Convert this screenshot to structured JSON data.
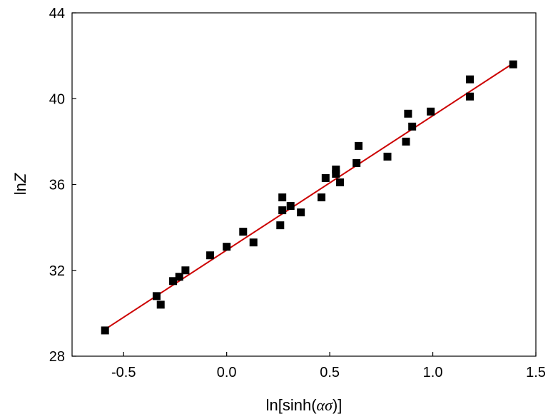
{
  "chart_data": {
    "type": "scatter",
    "title": "",
    "xlabel_parts": [
      "ln[sinh(",
      "ασ",
      ")]"
    ],
    "ylabel_parts": [
      "ln",
      "Z"
    ],
    "xlim": [
      -0.75,
      1.5
    ],
    "ylim": [
      28,
      44
    ],
    "xticks": [
      -0.5,
      0.0,
      0.5,
      1.0,
      1.5
    ],
    "xtick_labels": [
      "-0.5",
      "0.0",
      "0.5",
      "1.0",
      "1.5"
    ],
    "yticks": [
      28,
      32,
      36,
      40,
      44
    ],
    "ytick_labels": [
      "28",
      "32",
      "36",
      "40",
      "44"
    ],
    "grid": false,
    "series": [
      {
        "type": "scatter",
        "marker": "square",
        "color": "#000000",
        "points": [
          [
            -0.59,
            29.2
          ],
          [
            -0.34,
            30.8
          ],
          [
            -0.32,
            30.4
          ],
          [
            -0.26,
            31.5
          ],
          [
            -0.23,
            31.7
          ],
          [
            -0.2,
            32.0
          ],
          [
            -0.08,
            32.7
          ],
          [
            0.0,
            33.1
          ],
          [
            0.08,
            33.8
          ],
          [
            0.13,
            33.3
          ],
          [
            0.26,
            34.1
          ],
          [
            0.27,
            35.4
          ],
          [
            0.27,
            34.8
          ],
          [
            0.31,
            35.0
          ],
          [
            0.36,
            34.7
          ],
          [
            0.46,
            35.4
          ],
          [
            0.48,
            36.3
          ],
          [
            0.53,
            36.5
          ],
          [
            0.53,
            36.7
          ],
          [
            0.55,
            36.1
          ],
          [
            0.63,
            37.0
          ],
          [
            0.64,
            37.8
          ],
          [
            0.78,
            37.3
          ],
          [
            0.87,
            38.0
          ],
          [
            0.88,
            39.3
          ],
          [
            0.9,
            38.7
          ],
          [
            0.99,
            39.4
          ],
          [
            1.18,
            40.9
          ],
          [
            1.18,
            40.1
          ],
          [
            1.39,
            41.6
          ]
        ]
      },
      {
        "type": "line",
        "color": "#cc0000",
        "x": [
          -0.59,
          1.39
        ],
        "y": [
          29.25,
          41.65
        ]
      }
    ]
  }
}
